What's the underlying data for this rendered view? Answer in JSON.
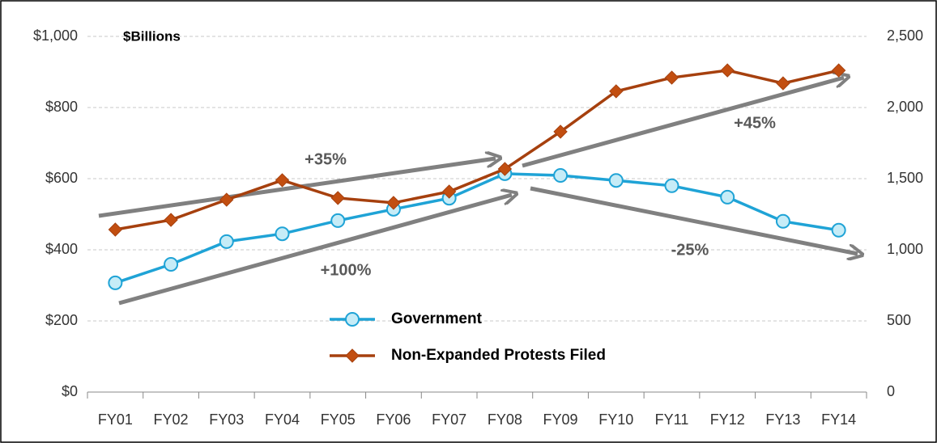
{
  "chart_data": {
    "type": "line",
    "unit_label": "$Billions",
    "annotations": [
      "+35%",
      "+100%",
      "+45%",
      "-25%"
    ],
    "categories": [
      "FY01",
      "FY02",
      "FY03",
      "FY04",
      "FY05",
      "FY06",
      "FY07",
      "FY08",
      "FY09",
      "FY10",
      "FY11",
      "FY12",
      "FY13",
      "FY14"
    ],
    "series": [
      {
        "name": "Government",
        "color": "#1fa3d6",
        "values": [
          307,
          359,
          423,
          445,
          482,
          514,
          545,
          614,
          609,
          595,
          580,
          548,
          480,
          455
        ]
      },
      {
        "name": "Non-Expanded Protests Filed",
        "color": "#a6400e",
        "axis": "y2",
        "values": [
          1142,
          1210,
          1352,
          1489,
          1364,
          1330,
          1409,
          1568,
          1830,
          2114,
          2210,
          2261,
          2170,
          2261
        ]
      }
    ],
    "ylim": [
      0,
      1000
    ],
    "yticks": [
      {
        "value": 0,
        "label": "$0"
      },
      {
        "value": 200,
        "label": "$200"
      },
      {
        "value": 400,
        "label": "$400"
      },
      {
        "value": 600,
        "label": "$600"
      },
      {
        "value": 800,
        "label": "$800"
      },
      {
        "value": 1000,
        "label": "$1,000"
      }
    ],
    "y2lim": [
      0,
      2500
    ],
    "y2ticks": [
      0,
      500,
      {
        "value": 1000,
        "label": "1,000"
      },
      {
        "value": 1500,
        "label": "1,500"
      },
      {
        "value": 2000,
        "label": "2,000"
      },
      {
        "value": 2500,
        "label": "2,500"
      }
    ],
    "grid": true
  }
}
